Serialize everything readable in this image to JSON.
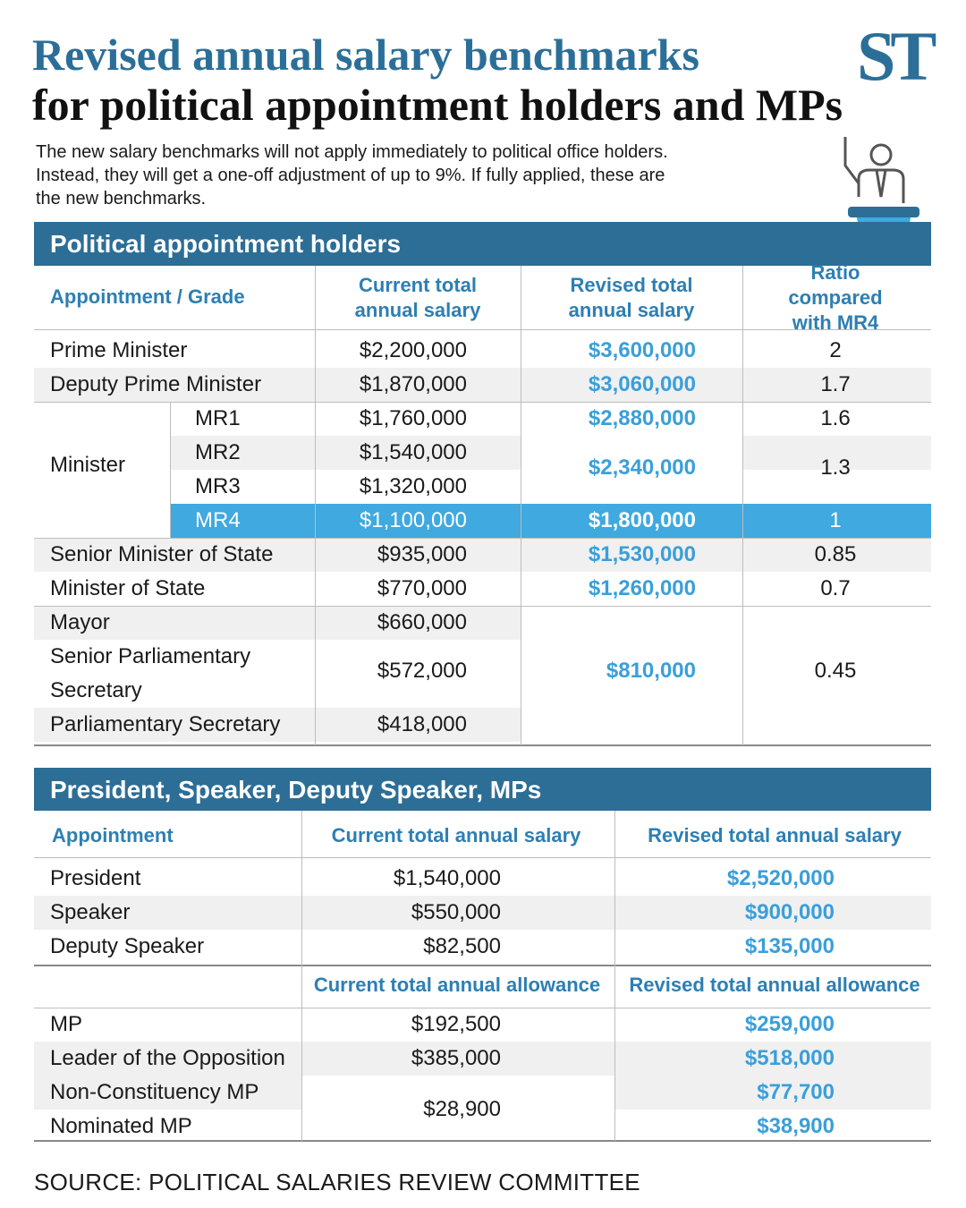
{
  "header": {
    "title_line1": "Revised annual salary benchmarks",
    "title_line2": "for political appointment holders and MPs",
    "logo": "ST",
    "intro": "The new salary benchmarks will not apply immediately to political office holders.\nInstead, they will get a one-off adjustment of up to 9%. If fully applied, these are\nthe new benchmarks."
  },
  "table1": {
    "title": "Political appointment holders",
    "headers": [
      "Appointment / Grade",
      "Current total\nannual salary",
      "Revised total\nannual salary",
      "Ratio compared\nwith MR4"
    ],
    "rows": [
      [
        "Prime Minister",
        "$2,200,000",
        "$3,600,000",
        "2"
      ],
      [
        "Deputy Prime Minister",
        "$1,870,000",
        "$3,060,000",
        "1.7"
      ]
    ],
    "minister": {
      "label": "Minister",
      "grades": [
        "MR1",
        "MR2",
        "MR3",
        "MR4"
      ],
      "current": [
        "$1,760,000",
        "$1,540,000",
        "$1,320,000",
        "$1,100,000"
      ],
      "revised": [
        "$2,880,000",
        "$2,340,000",
        "$1,800,000"
      ],
      "ratio": [
        "1.6",
        "1.3",
        "1"
      ]
    },
    "rows2": [
      [
        "Senior Minister of State",
        "$935,000",
        "$1,530,000",
        "0.85"
      ],
      [
        "Minister of State",
        "$770,000",
        "$1,260,000",
        "0.7"
      ]
    ],
    "junior": {
      "labels": [
        "Mayor",
        "Senior Parliamentary\nSecretary",
        "Parliamentary Secretary"
      ],
      "current": [
        "$660,000",
        "$572,000",
        "$418,000"
      ],
      "revised": "$810,000",
      "ratio": "0.45"
    }
  },
  "table2": {
    "title": "President, Speaker, Deputy Speaker, MPs",
    "headers": [
      "Appointment",
      "Current total annual salary",
      "Revised total annual salary"
    ],
    "salary_rows": [
      [
        "President",
        "$1,540,000",
        "$2,520,000"
      ],
      [
        "Speaker",
        "$550,000",
        "$900,000"
      ],
      [
        "Deputy Speaker",
        "$82,500",
        "$135,000"
      ]
    ],
    "allowance_headers": [
      "Current total annual allowance",
      "Revised total annual allowance"
    ],
    "allowance_rows": [
      [
        "MP",
        "$192,500",
        "$259,000"
      ],
      [
        "Leader of the Opposition",
        "$385,000",
        "$518,000"
      ]
    ],
    "ncmp_nmp": {
      "labels": [
        "Non-Constituency MP",
        "Nominated MP"
      ],
      "current": "$28,900",
      "revised": [
        "$77,700",
        "$38,900"
      ]
    }
  },
  "source": "SOURCE: POLITICAL SALARIES REVIEW COMMITTEE"
}
